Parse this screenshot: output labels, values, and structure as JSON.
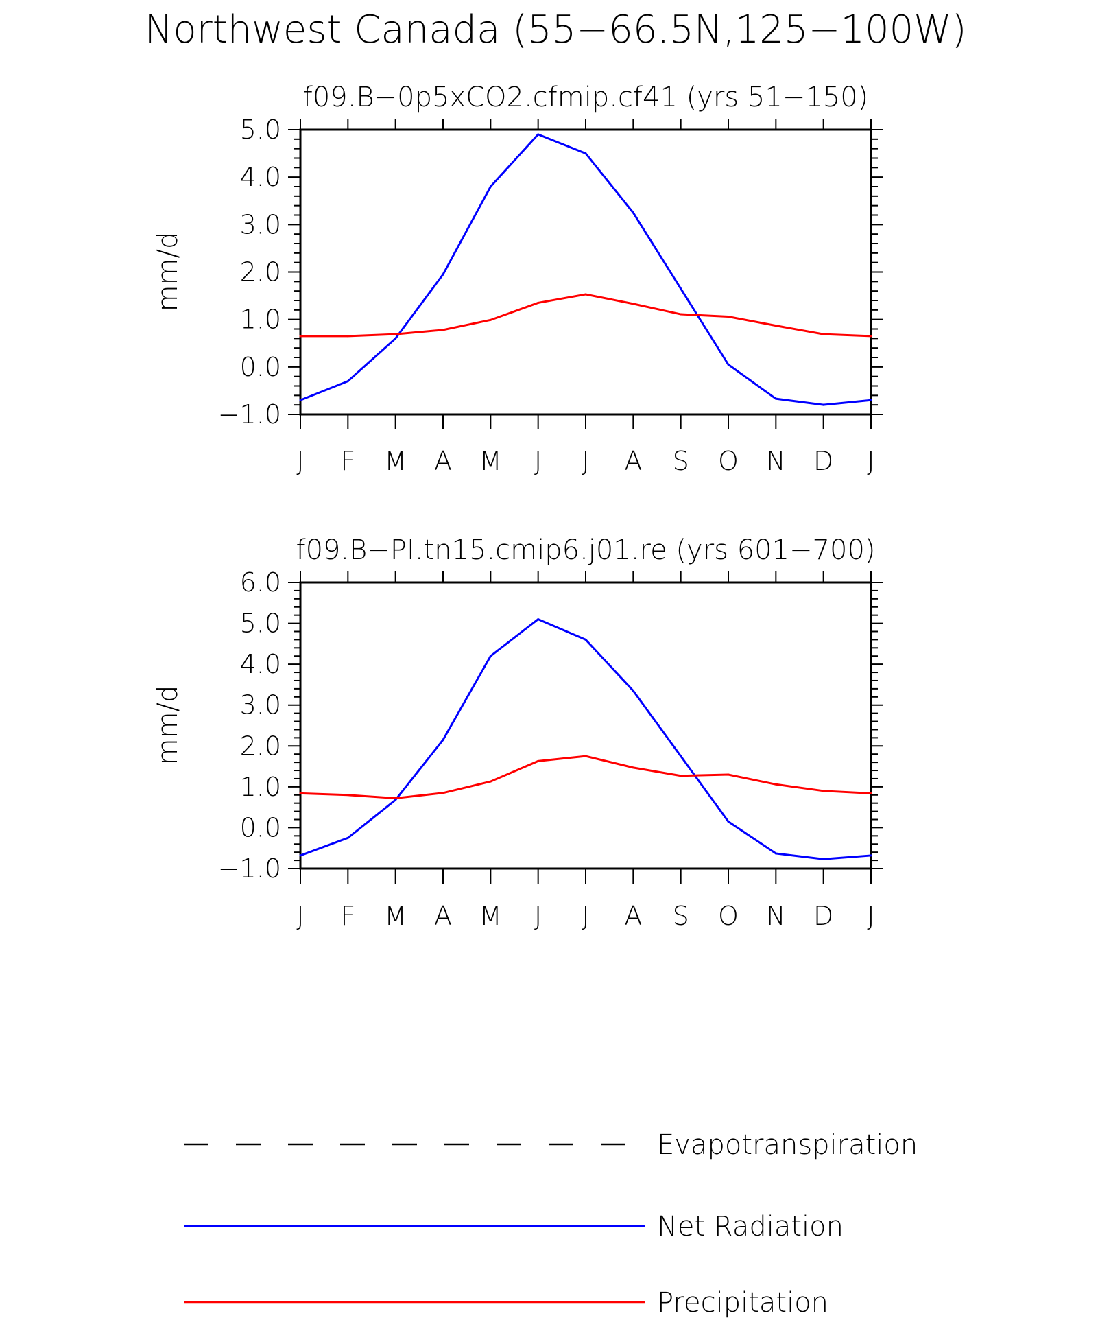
{
  "title": "Northwest Canada (55−66.5N,125−100W)",
  "colors": {
    "net_radiation": "#0000ff",
    "precipitation": "#ff0000",
    "evapotranspiration": "#000000",
    "axes": "#000000"
  },
  "legend": [
    {
      "label": "Evapotranspiration",
      "style": "dashed",
      "color": "#000000"
    },
    {
      "label": "Net Radiation",
      "style": "solid",
      "color": "#0000ff"
    },
    {
      "label": "Precipitation",
      "style": "solid",
      "color": "#ff0000"
    }
  ],
  "chart_data": [
    {
      "type": "line",
      "title": "f09.B−0p5xCO2.cfmip.cf41 (yrs 51−150)",
      "ylabel": "mm/d",
      "xlabel": "",
      "categories": [
        "J",
        "F",
        "M",
        "A",
        "M",
        "J",
        "J",
        "A",
        "S",
        "O",
        "N",
        "D",
        "J"
      ],
      "ylim": [
        -1.0,
        5.0
      ],
      "yticks": [
        "−1.0",
        "0.0",
        "1.0",
        "2.0",
        "3.0",
        "4.0",
        "5.0"
      ],
      "ytick_values": [
        -1.0,
        0.0,
        1.0,
        2.0,
        3.0,
        4.0,
        5.0
      ],
      "series": [
        {
          "name": "Net Radiation",
          "color": "#0000ff",
          "values": [
            -0.7,
            -0.3,
            0.6,
            1.95,
            3.8,
            4.9,
            4.5,
            3.25,
            1.65,
            0.05,
            -0.67,
            -0.8,
            -0.7
          ]
        },
        {
          "name": "Precipitation",
          "color": "#ff0000",
          "values": [
            0.65,
            0.65,
            0.69,
            0.78,
            0.99,
            1.35,
            1.53,
            1.33,
            1.11,
            1.06,
            0.87,
            0.69,
            0.65
          ]
        }
      ]
    },
    {
      "type": "line",
      "title": "f09.B−PI.tn15.cmip6.j01.re (yrs 601−700)",
      "ylabel": "mm/d",
      "xlabel": "",
      "categories": [
        "J",
        "F",
        "M",
        "A",
        "M",
        "J",
        "J",
        "A",
        "S",
        "O",
        "N",
        "D",
        "J"
      ],
      "ylim": [
        -1.0,
        6.0
      ],
      "yticks": [
        "−1.0",
        "0.0",
        "1.0",
        "2.0",
        "3.0",
        "4.0",
        "5.0",
        "6.0"
      ],
      "ytick_values": [
        -1.0,
        0.0,
        1.0,
        2.0,
        3.0,
        4.0,
        5.0,
        6.0
      ],
      "series": [
        {
          "name": "Net Radiation",
          "color": "#0000ff",
          "values": [
            -0.68,
            -0.25,
            0.68,
            2.15,
            4.2,
            5.1,
            4.6,
            3.35,
            1.75,
            0.15,
            -0.63,
            -0.77,
            -0.68
          ]
        },
        {
          "name": "Precipitation",
          "color": "#ff0000",
          "values": [
            0.84,
            0.8,
            0.72,
            0.85,
            1.13,
            1.63,
            1.75,
            1.47,
            1.27,
            1.3,
            1.06,
            0.9,
            0.84
          ]
        }
      ]
    }
  ]
}
